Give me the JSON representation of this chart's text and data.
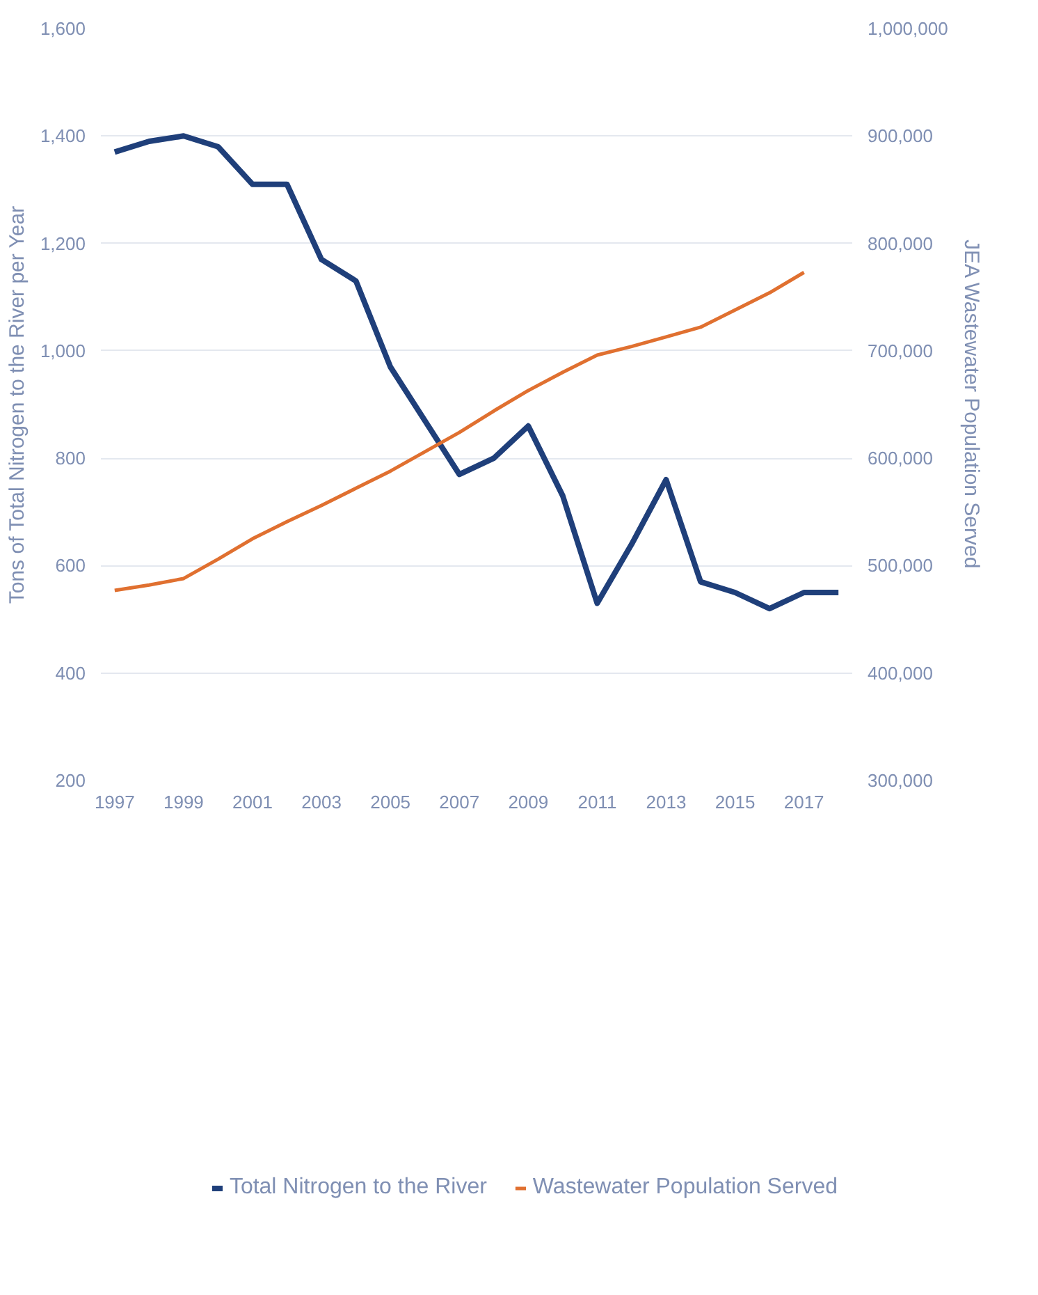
{
  "chart_data": {
    "type": "line",
    "x": [
      1997,
      1998,
      1999,
      2000,
      2001,
      2002,
      2003,
      2004,
      2005,
      2006,
      2007,
      2008,
      2009,
      2010,
      2011,
      2012,
      2013,
      2014,
      2015,
      2016,
      2017,
      2018
    ],
    "series": [
      {
        "name": "Total Nitrogen to the River",
        "color": "#1f3f7a",
        "values": [
          1370,
          1390,
          1400,
          1380,
          1310,
          1310,
          1170,
          1130,
          970,
          870,
          770,
          800,
          860,
          730,
          530,
          640,
          760,
          570,
          550,
          520,
          550,
          550
        ]
      },
      {
        "name": "Wastewater Population Served",
        "color": "#e07030",
        "axis": "y2",
        "x": [
          1997,
          1998,
          1999,
          2000,
          2001,
          2002,
          2003,
          2004,
          2005,
          2006,
          2007,
          2008,
          2009,
          2010,
          2011,
          2012,
          2013,
          2014,
          2015,
          2016,
          2017
        ],
        "values": [
          477000,
          482000,
          488000,
          506000,
          525000,
          541000,
          556000,
          572000,
          588000,
          606000,
          624000,
          644000,
          663000,
          680000,
          696000,
          704000,
          713000,
          722000,
          738000,
          754000,
          773000
        ]
      }
    ],
    "ylabel": "Tons of Total Nitrogen to the River per Year",
    "y2label": "JEA Wastewater Population Served",
    "xlim": [
      1996.6,
      2018.4
    ],
    "xticks": [
      1997,
      1999,
      2001,
      2003,
      2005,
      2007,
      2009,
      2011,
      2013,
      2015,
      2017
    ],
    "ylim": [
      200,
      1600
    ],
    "yticks": [
      {
        "value": 200,
        "label": "200"
      },
      {
        "value": 400,
        "label": "400"
      },
      {
        "value": 600,
        "label": "600"
      },
      {
        "value": 800,
        "label": "800"
      },
      {
        "value": 1000,
        "label": "1,000"
      },
      {
        "value": 1200,
        "label": "1,200"
      },
      {
        "value": 1400,
        "label": "1,400"
      },
      {
        "value": 1600,
        "label": "1,600"
      }
    ],
    "y2lim": [
      300000,
      1000000
    ],
    "y2ticks": [
      {
        "value": 300000,
        "label": "300,000"
      },
      {
        "value": 400000,
        "label": "400,000"
      },
      {
        "value": 500000,
        "label": "500,000"
      },
      {
        "value": 600000,
        "label": "600,000"
      },
      {
        "value": 700000,
        "label": "700,000"
      },
      {
        "value": 800000,
        "label": "800,000"
      },
      {
        "value": 900000,
        "label": "900,000"
      },
      {
        "value": 1000000,
        "label": "1,000,000"
      }
    ],
    "grid": "y",
    "legend": "bottom",
    "line_style": "solid",
    "marker": "none"
  }
}
